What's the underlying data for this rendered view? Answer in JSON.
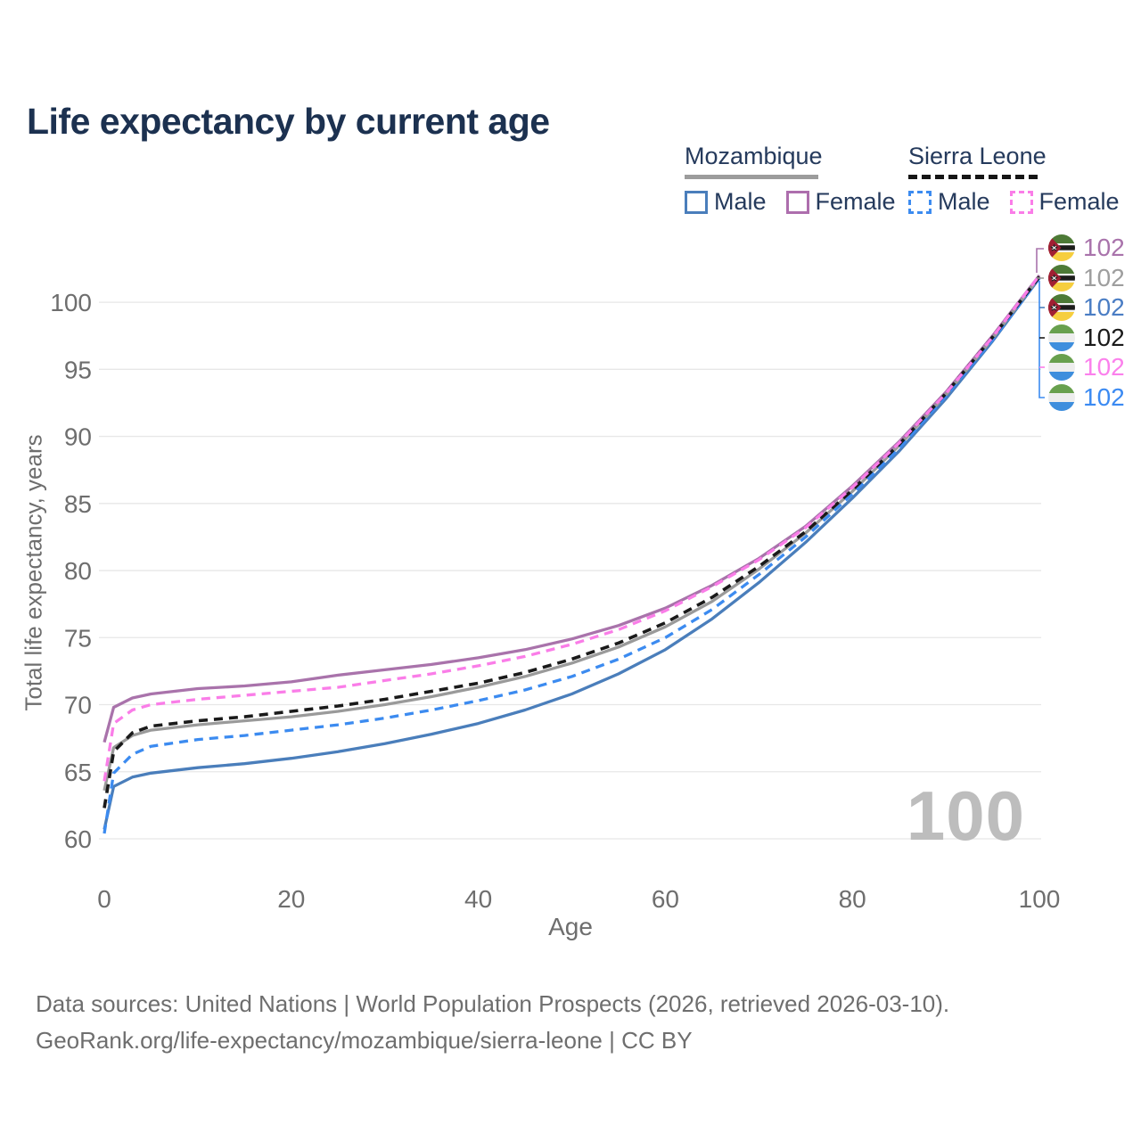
{
  "title": "Life expectancy by current age",
  "legend": {
    "groups": [
      {
        "label": "Mozambique",
        "line_style": "solid",
        "rule_color": "#9c9c9c",
        "items": [
          {
            "label": "Male",
            "color": "#4a7ebb",
            "dashed": false
          },
          {
            "label": "Female",
            "color": "#ad6ead",
            "dashed": false
          }
        ]
      },
      {
        "label": "Sierra Leone",
        "line_style": "dashed",
        "rule_color": "#151515",
        "items": [
          {
            "label": "Male",
            "color": "#3c8bf0",
            "dashed": true
          },
          {
            "label": "Female",
            "color": "#fa7de8",
            "dashed": true
          }
        ]
      }
    ]
  },
  "chart_data": {
    "type": "line",
    "title": "Life expectancy by current age",
    "xlabel": "Age",
    "ylabel": "Total life expectancy, years",
    "xlim": [
      0,
      100
    ],
    "ylim": [
      60,
      102
    ],
    "x_ticks": [
      0,
      20,
      40,
      60,
      80,
      100
    ],
    "y_ticks": [
      60,
      65,
      70,
      75,
      80,
      85,
      90,
      95,
      100
    ],
    "grid": "horizontal only",
    "legend_position": "top-right",
    "x": [
      0,
      1,
      3,
      5,
      10,
      15,
      20,
      25,
      30,
      35,
      40,
      45,
      50,
      55,
      60,
      65,
      70,
      75,
      80,
      85,
      90,
      95,
      100
    ],
    "series": [
      {
        "id": "moz-female",
        "name": "Mozambique Female",
        "country": "Mozambique",
        "sex": "Female",
        "color": "#a973ab",
        "dashed": false,
        "values": [
          67.2,
          69.8,
          70.5,
          70.8,
          71.2,
          71.4,
          71.7,
          72.2,
          72.6,
          73.0,
          73.5,
          74.1,
          74.9,
          75.9,
          77.2,
          78.9,
          80.9,
          83.3,
          86.3,
          89.6,
          93.3,
          97.5,
          102.0
        ]
      },
      {
        "id": "moz-male",
        "name": "Mozambique Male",
        "country": "Mozambique",
        "sex": "Male",
        "color": "#4a7ebb",
        "dashed": false,
        "values": [
          60.7,
          63.9,
          64.6,
          64.9,
          65.3,
          65.6,
          66.0,
          66.5,
          67.1,
          67.8,
          68.6,
          69.6,
          70.8,
          72.3,
          74.1,
          76.4,
          79.1,
          82.1,
          85.4,
          88.9,
          92.8,
          97.1,
          101.8
        ]
      },
      {
        "id": "moz-total",
        "name": "Mozambique (both sexes)",
        "country": "Mozambique",
        "sex": "Both",
        "color": "#9a9a9a",
        "dashed": false,
        "values": [
          63.6,
          66.8,
          67.7,
          68.1,
          68.5,
          68.8,
          69.1,
          69.5,
          70.0,
          70.6,
          71.3,
          72.1,
          73.1,
          74.3,
          75.8,
          77.7,
          80.1,
          82.8,
          85.9,
          89.3,
          93.1,
          97.3,
          101.9
        ]
      },
      {
        "id": "sl-male",
        "name": "Sierra Leone Male",
        "country": "Sierra Leone",
        "sex": "Male",
        "color": "#3c8bf0",
        "dashed": true,
        "values": [
          60.4,
          64.9,
          66.3,
          66.9,
          67.4,
          67.7,
          68.1,
          68.5,
          69.0,
          69.6,
          70.3,
          71.1,
          72.1,
          73.4,
          75.0,
          77.1,
          79.7,
          82.5,
          85.7,
          89.1,
          93.0,
          97.2,
          101.8
        ]
      },
      {
        "id": "sl-total",
        "name": "Sierra Leone (both sexes)",
        "country": "Sierra Leone",
        "sex": "Both",
        "color": "#1a1a1a",
        "dashed": true,
        "values": [
          62.3,
          66.5,
          67.9,
          68.4,
          68.8,
          69.1,
          69.5,
          69.9,
          70.4,
          71.0,
          71.6,
          72.4,
          73.4,
          74.6,
          76.1,
          78.0,
          80.3,
          82.9,
          86.0,
          89.4,
          93.2,
          97.4,
          101.9
        ]
      },
      {
        "id": "sl-female",
        "name": "Sierra Leone Female",
        "country": "Sierra Leone",
        "sex": "Female",
        "color": "#fa7de8",
        "dashed": true,
        "values": [
          64.3,
          68.6,
          69.6,
          70.0,
          70.4,
          70.7,
          71.0,
          71.3,
          71.8,
          72.3,
          72.9,
          73.6,
          74.5,
          75.6,
          77.0,
          78.8,
          80.8,
          83.2,
          86.2,
          89.5,
          93.2,
          97.4,
          102.0
        ]
      }
    ]
  },
  "end_labels": [
    {
      "flag": "mozambique",
      "series": "Mozambique Female",
      "value": "102",
      "color": "#a973ab"
    },
    {
      "flag": "mozambique",
      "series": "Mozambique (both sexes)",
      "value": "102",
      "color": "#9e9e9e"
    },
    {
      "flag": "mozambique",
      "series": "Mozambique Male",
      "value": "102",
      "color": "#4a7dc4"
    },
    {
      "flag": "sierra-leone",
      "series": "Sierra Leone (both sexes)",
      "value": "102",
      "color": "#1a1a1a"
    },
    {
      "flag": "sierra-leone",
      "series": "Sierra Leone Female",
      "value": "102",
      "color": "#fb80ec"
    },
    {
      "flag": "sierra-leone",
      "series": "Sierra Leone Male",
      "value": "102",
      "color": "#3b8af2"
    }
  ],
  "watermark_age": "100",
  "footer": {
    "line1": "Data sources: United Nations | World Population Prospects (2026, retrieved 2026-03-10).",
    "line2": "GeoRank.org/life-expectancy/mozambique/sierra-leone | CC BY"
  },
  "colors": {
    "title_text": "#1c3150",
    "axis_text": "#6e6e6e",
    "gridline": "#e7e7e7",
    "watermark": "#bdbdbd",
    "background": "#ffffff"
  }
}
